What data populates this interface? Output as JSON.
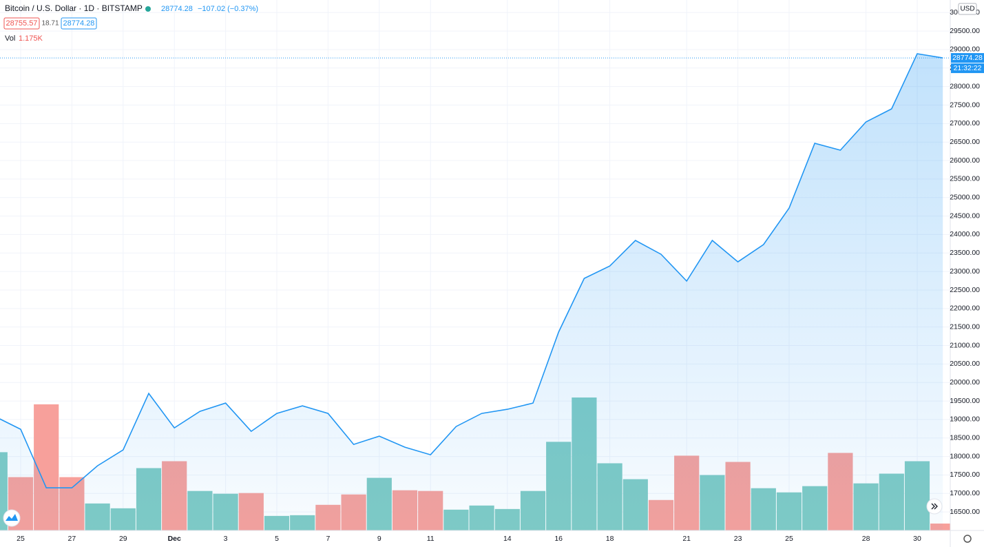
{
  "chart_data": {
    "type": "area",
    "title": "Bitcoin / U.S. Dollar · 1D · BITSTAMP",
    "last_price_text": "28774.28",
    "change_text": "−107.02 (−0.37%)",
    "bid_text": "28755.57",
    "spread_text": "18.71",
    "ask_text": "28774.28",
    "volume_title": "Vol",
    "volume_text": "1.175K",
    "currency": "USD",
    "price_label": "28774.28",
    "countdown": "21:32:22",
    "color": "#2196f3",
    "categories": [
      null,
      "25",
      null,
      "27",
      null,
      "29",
      null,
      "Dec",
      null,
      "3",
      null,
      "5",
      null,
      "7",
      null,
      "9",
      null,
      "11",
      null,
      null,
      "14",
      null,
      "16",
      null,
      "18",
      null,
      null,
      "21",
      null,
      "23",
      null,
      "25",
      null,
      null,
      "28",
      null,
      "30",
      null
    ],
    "values": [
      19080,
      18735,
      17152,
      17152,
      17748,
      18177,
      19704,
      18773,
      19220,
      19443,
      18680,
      19164,
      19369,
      19164,
      18326,
      18549,
      18251,
      18046,
      18810,
      19164,
      19276,
      19443,
      21362,
      22815,
      23150,
      23840,
      23467,
      22741,
      23840,
      23262,
      23728,
      24715,
      26466,
      26280,
      27044,
      27398,
      28888,
      28774.28
    ],
    "volume": {
      "values": [
        13280,
        9050,
        21400,
        9050,
        4580,
        3760,
        10580,
        11750,
        6700,
        6230,
        6350,
        2470,
        2590,
        4350,
        6110,
        8930,
        6820,
        6700,
        3530,
        4230,
        3640,
        6700,
        15040,
        22560,
        11400,
        8700,
        5170,
        12690,
        9400,
        11630,
        7170,
        6460,
        7520,
        13160,
        7990,
        9640,
        11750,
        1175
      ],
      "colors": [
        "#80cbc4",
        "#f7a09b",
        "#f7a09b",
        "#f7a09b",
        "#80cbc4",
        "#80cbc4",
        "#80cbc4",
        "#f7a09b",
        "#80cbc4",
        "#80cbc4",
        "#f7a09b",
        "#80cbc4",
        "#80cbc4",
        "#f7a09b",
        "#f7a09b",
        "#80cbc4",
        "#f7a09b",
        "#f7a09b",
        "#80cbc4",
        "#80cbc4",
        "#80cbc4",
        "#80cbc4",
        "#80cbc4",
        "#80cbc4",
        "#80cbc4",
        "#80cbc4",
        "#f7a09b",
        "#f7a09b",
        "#80cbc4",
        "#f7a09b",
        "#80cbc4",
        "#80cbc4",
        "#80cbc4",
        "#f7a09b",
        "#80cbc4",
        "#80cbc4",
        "#80cbc4",
        "#f7a09b"
      ],
      "ylim": [
        0,
        90000
      ]
    },
    "ylim": [
      16000,
      30340
    ],
    "yticks": [
      {
        "value": 16500,
        "label": "16500.00"
      },
      {
        "value": 17000,
        "label": "17000.00"
      },
      {
        "value": 17500,
        "label": "17500.00"
      },
      {
        "value": 18000,
        "label": "18000.00"
      },
      {
        "value": 18500,
        "label": "18500.00"
      },
      {
        "value": 19000,
        "label": "19000.00"
      },
      {
        "value": 19500,
        "label": "19500.00"
      },
      {
        "value": 20000,
        "label": "20000.00"
      },
      {
        "value": 20500,
        "label": "20500.00"
      },
      {
        "value": 21000,
        "label": "21000.00"
      },
      {
        "value": 21500,
        "label": "21500.00"
      },
      {
        "value": 22000,
        "label": "22000.00"
      },
      {
        "value": 22500,
        "label": "22500.00"
      },
      {
        "value": 23000,
        "label": "23000.00"
      },
      {
        "value": 23500,
        "label": "23500.00"
      },
      {
        "value": 24000,
        "label": "24000.00"
      },
      {
        "value": 24500,
        "label": "24500.00"
      },
      {
        "value": 25000,
        "label": "25000.00"
      },
      {
        "value": 25500,
        "label": "25500.00"
      },
      {
        "value": 26000,
        "label": "26000.00"
      },
      {
        "value": 26500,
        "label": "26500.00"
      },
      {
        "value": 27000,
        "label": "27000.00"
      },
      {
        "value": 27500,
        "label": "27500.00"
      },
      {
        "value": 28000,
        "label": "28000.00"
      },
      {
        "value": 28500,
        "label": "28500.00"
      },
      {
        "value": 29000,
        "label": "29000.00"
      },
      {
        "value": 29500,
        "label": "29500.00"
      },
      {
        "value": 30000,
        "label": "30000.00"
      }
    ],
    "grid": true
  }
}
